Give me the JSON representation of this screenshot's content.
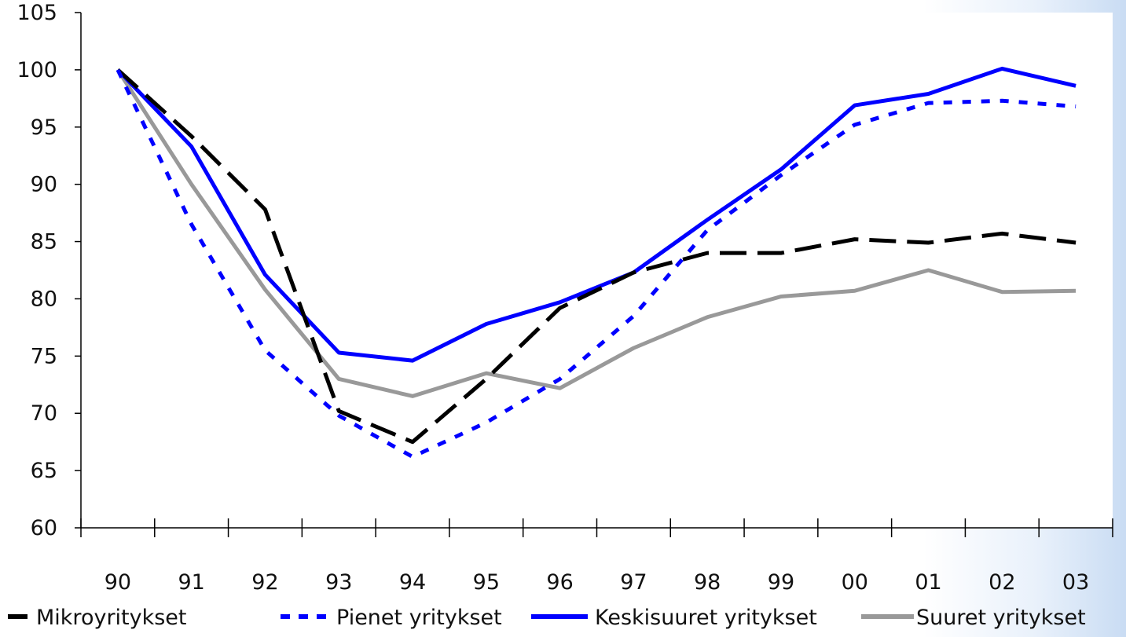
{
  "chart_data": {
    "type": "line",
    "title": "",
    "xlabel": "",
    "ylabel": "",
    "categories": [
      "90",
      "91",
      "92",
      "93",
      "94",
      "95",
      "96",
      "97",
      "98",
      "99",
      "00",
      "01",
      "02",
      "03"
    ],
    "ylim": [
      60,
      105
    ],
    "yticks": [
      "60",
      "65",
      "70",
      "75",
      "80",
      "85",
      "90",
      "95",
      "100",
      "105"
    ],
    "grid": false,
    "legend_position": "bottom",
    "series": [
      {
        "name": "Mikroyritykset",
        "color": "#000000",
        "style": "long-dash",
        "values": [
          100,
          94.2,
          87.8,
          70.2,
          67.5,
          73.0,
          79.2,
          82.3,
          84.0,
          84.0,
          85.2,
          84.9,
          85.7,
          84.9
        ]
      },
      {
        "name": "Pienet yritykset",
        "color": "#0000ff",
        "style": "short-dash",
        "values": [
          100,
          86.5,
          75.5,
          69.8,
          66.2,
          69.2,
          73.0,
          78.5,
          86.0,
          90.8,
          95.2,
          97.1,
          97.3,
          96.8
        ]
      },
      {
        "name": "Keskisuuret yritykset",
        "color": "#0000ff",
        "style": "solid",
        "values": [
          100,
          93.3,
          82.1,
          75.3,
          74.6,
          77.8,
          79.7,
          82.3,
          86.9,
          91.3,
          96.9,
          97.9,
          100.1,
          98.6
        ]
      },
      {
        "name": "Suuret yritykset",
        "color": "#999999",
        "style": "solid",
        "values": [
          100,
          90.0,
          80.8,
          73.0,
          71.5,
          73.5,
          72.2,
          75.7,
          78.4,
          80.2,
          80.7,
          82.5,
          80.6,
          80.7
        ]
      }
    ]
  }
}
